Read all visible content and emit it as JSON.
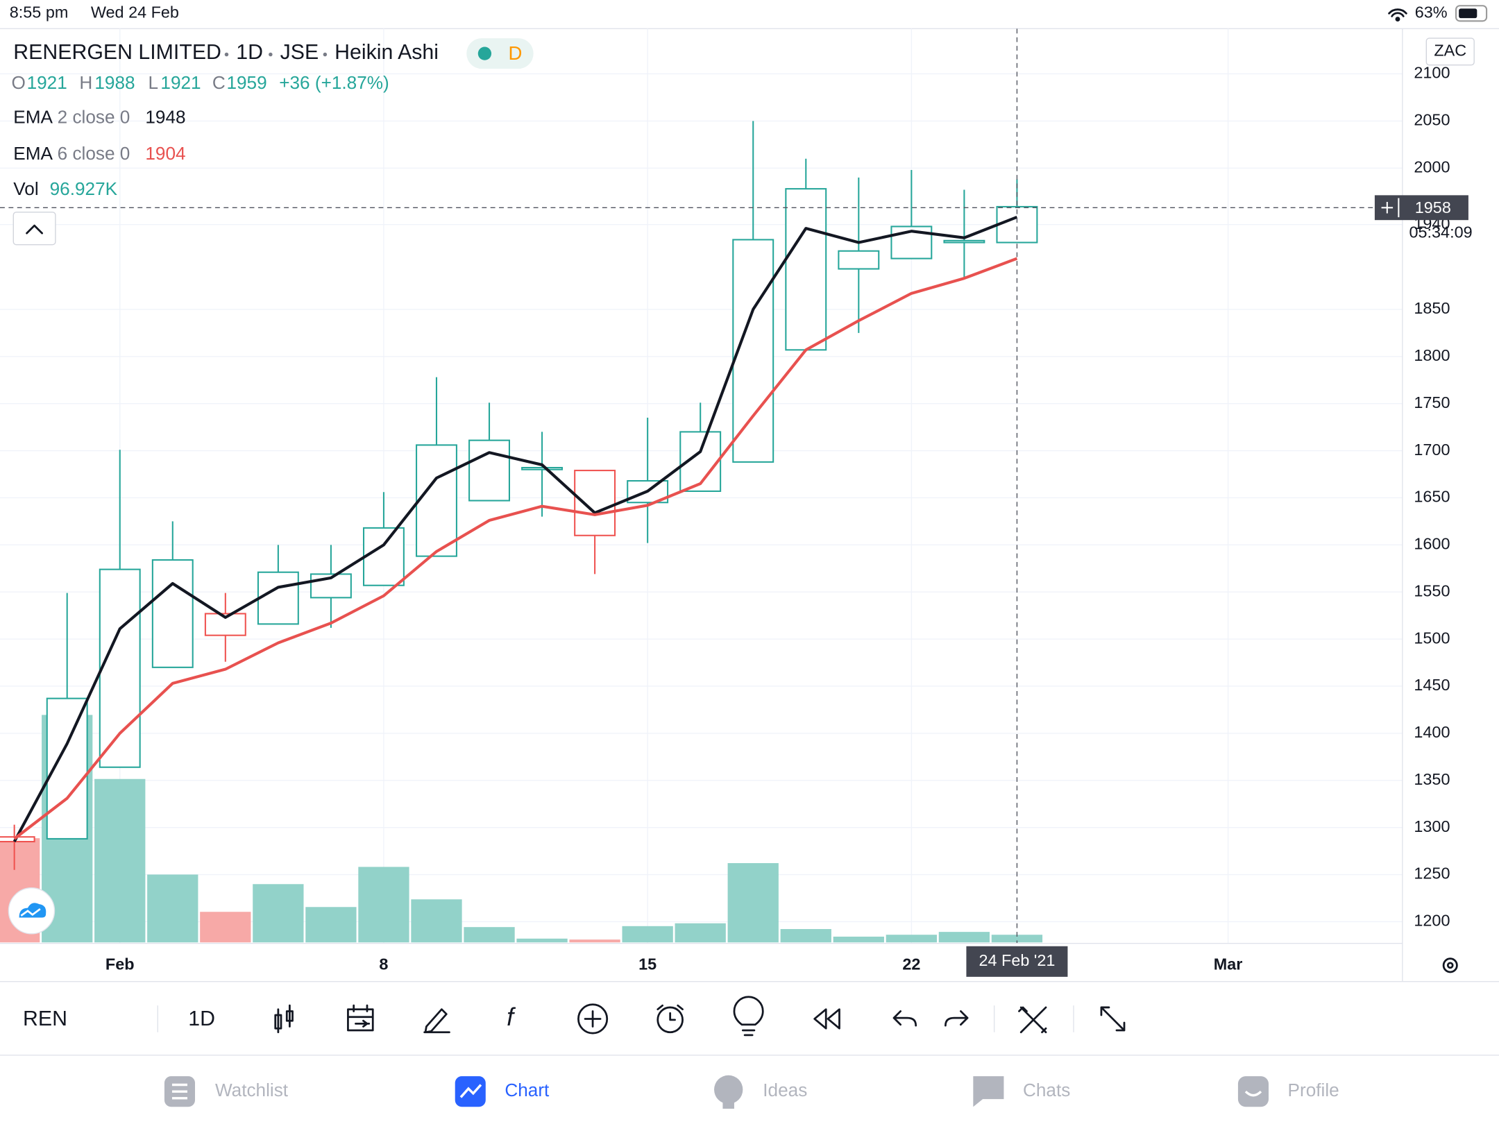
{
  "status_bar": {
    "time": "8:55 pm",
    "date": "Wed 24 Feb",
    "battery": "63%"
  },
  "header": {
    "title": "RENERGEN LIMITED",
    "interval": "1D",
    "exchange": "JSE",
    "style": "Heikin Ashi",
    "badge": "D",
    "ohlc_labels": [
      "O",
      "H",
      "L",
      "C"
    ],
    "change": "+36 (+1.87%)",
    "ema_rows": [
      {
        "name": "EMA",
        "params": "2 close 0"
      },
      {
        "name": "EMA",
        "params": "6 close 0"
      }
    ],
    "vol_name": "Vol",
    "currency": "ZAC"
  },
  "chart_data": {
    "type": "candlestick",
    "categories": [
      null,
      null,
      "Feb",
      null,
      null,
      null,
      null,
      "8",
      null,
      null,
      null,
      null,
      "15",
      null,
      null,
      null,
      null,
      "22",
      null,
      null,
      null,
      null,
      null,
      "Mar"
    ],
    "open": [
      1290,
      1288,
      1364,
      1470,
      1527,
      1516,
      1544,
      1557,
      1588,
      1647,
      1680,
      1679,
      1645,
      1657,
      1688,
      1807,
      1893,
      1904,
      1921,
      1921,
      null,
      null,
      null,
      null
    ],
    "high": [
      1303,
      1549,
      1701,
      1625,
      1549,
      1600,
      1600,
      1656,
      1778,
      1751,
      1720,
      1679,
      1735,
      1751,
      2050,
      2010,
      1990,
      1998,
      1977,
      1988,
      null,
      null,
      null,
      null
    ],
    "low": [
      1255,
      1288,
      1364,
      1470,
      1476,
      1516,
      1512,
      1557,
      1588,
      1647,
      1630,
      1569,
      1602,
      1657,
      1688,
      1807,
      1825,
      1904,
      1884,
      1921,
      null,
      null,
      null,
      null
    ],
    "close": [
      1285,
      1437,
      1574,
      1584,
      1504,
      1571,
      1569,
      1618,
      1706,
      1711,
      1682,
      1610,
      1668,
      1720,
      1924,
      1978,
      1912,
      1938,
      1923,
      1959,
      null,
      null,
      null,
      null
    ],
    "volume": {
      "values": [
        1319000,
        2880000,
        2069000,
        859000,
        387000,
        738000,
        448000,
        956000,
        545000,
        194000,
        48000,
        36000,
        206000,
        242000,
        1004000,
        169000,
        73000,
        97000,
        133000,
        96927,
        null,
        null,
        null,
        null
      ],
      "last_label": "96.927K"
    },
    "lines": [
      {
        "color": "#131722",
        "values": [
          1285,
          1389,
          1511,
          1559,
          1523,
          1555,
          1565,
          1600,
          1671,
          1698,
          1685,
          1634,
          1657,
          1699,
          1850,
          1936,
          1921,
          1933,
          1926,
          1948,
          null,
          null,
          null,
          null
        ]
      },
      {
        "color": "#e8514f",
        "values": [
          1288,
          1331,
          1400,
          1453,
          1468,
          1496,
          1517,
          1546,
          1593,
          1626,
          1641,
          1632,
          1642,
          1665,
          1737,
          1807,
          1838,
          1867,
          1883,
          1904,
          null,
          null,
          null,
          null
        ]
      }
    ],
    "up_color": "#26a69a",
    "down_color": "#ef5350",
    "up_volume_color": "#92d2c9",
    "down_volume_color": "#f7a9a7",
    "ylim": [
      1177,
      2148
    ],
    "yticks": [
      1200,
      1250,
      1300,
      1350,
      1400,
      1450,
      1500,
      1550,
      1600,
      1650,
      1700,
      1750,
      1800,
      1850,
      1940,
      2000,
      2050,
      2100
    ],
    "grid": true,
    "crosshair": {
      "index": 19,
      "price": 1958,
      "countdown": "05:34:09",
      "date": "24 Feb '21"
    }
  },
  "toolbar": {
    "symbol": "REN",
    "interval": "1D"
  },
  "tabs": [
    "Watchlist",
    "Chart",
    "Ideas",
    "Chats",
    "Profile"
  ]
}
